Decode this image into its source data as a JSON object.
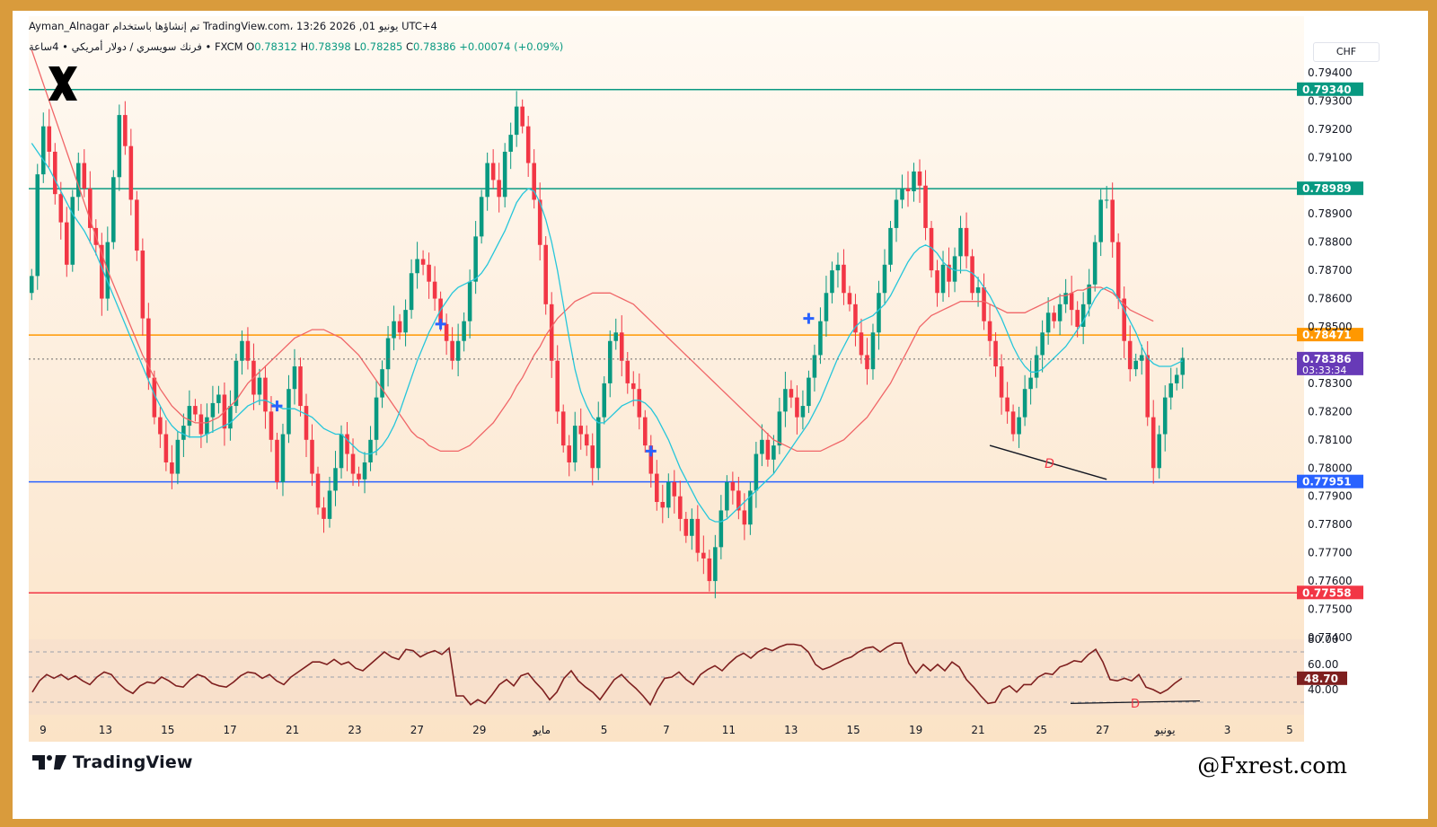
{
  "header": {
    "title_line": "Ayman_Alnagar تم إنشاؤها باستخدام TradingView.com، 13:26 2026 ,01 يونيو UTC+4",
    "symbol_line": "فرنك سويسري / دولار أمريكي • 4ساعة • FXCM",
    "o_label": "O",
    "o_value": "0.78312",
    "h_label": "H",
    "h_value": "0.78398",
    "l_label": "L",
    "l_value": "0.78285",
    "c_label": "C",
    "c_value": "0.78386",
    "change": "+0.00074 (+0.09%)"
  },
  "currency": "CHF",
  "brand": "TradingView",
  "watermark": "@Fxrest.com",
  "colors": {
    "bull": "#089981",
    "bear": "#f23645",
    "ma_fast": "#26c6da",
    "ma_slow": "#f06668",
    "resistance": "#089981",
    "pivot": "#ff9800",
    "support": "#2962ff",
    "low": "#f23645",
    "rsi": "#7e1f1f",
    "price_tag": "#673ab7",
    "frame": "#d99b3c"
  },
  "chart_data": {
    "type": "candlestick",
    "instrument": "USD/CHF",
    "timeframe": "4h",
    "y_ticks": [
      "0.79400",
      "0.79300",
      "0.79200",
      "0.79100",
      "0.78900",
      "0.78800",
      "0.78700",
      "0.78600",
      "0.78500",
      "0.78300",
      "0.78200",
      "0.78100",
      "0.78000",
      "0.77900",
      "0.77800",
      "0.77700",
      "0.77600",
      "0.77500",
      "0.77400"
    ],
    "ylim": [
      0.774,
      0.796
    ],
    "x_ticks": [
      "9",
      "13",
      "15",
      "17",
      "21",
      "23",
      "27",
      "29",
      "مايو",
      "5",
      "7",
      "11",
      "13",
      "15",
      "19",
      "21",
      "25",
      "27",
      "يونيو",
      "3",
      "5"
    ],
    "horizontal_levels": [
      {
        "label": "0.79340",
        "value": 0.7934,
        "color": "#089981"
      },
      {
        "label": "0.78989",
        "value": 0.78989,
        "color": "#089981"
      },
      {
        "label": "0.78471",
        "value": 0.78471,
        "color": "#ff9800"
      },
      {
        "label": "0.77951",
        "value": 0.77951,
        "color": "#2962ff"
      },
      {
        "label": "0.77558",
        "value": 0.77558,
        "color": "#f23645"
      }
    ],
    "current_price": {
      "label": "0.78386",
      "value": 0.78386,
      "countdown": "03:33:34"
    },
    "closes": [
      0.7868,
      0.7904,
      0.7921,
      0.7912,
      0.7897,
      0.7887,
      0.7872,
      0.7896,
      0.7908,
      0.7899,
      0.7885,
      0.7879,
      0.786,
      0.788,
      0.7903,
      0.7925,
      0.7914,
      0.7895,
      0.7877,
      0.7853,
      0.7832,
      0.7818,
      0.7812,
      0.7802,
      0.7798,
      0.781,
      0.7815,
      0.7822,
      0.7819,
      0.7812,
      0.7818,
      0.7823,
      0.7826,
      0.7814,
      0.7822,
      0.7838,
      0.7845,
      0.7838,
      0.7826,
      0.7832,
      0.782,
      0.781,
      0.7795,
      0.7812,
      0.7828,
      0.7836,
      0.7822,
      0.781,
      0.7798,
      0.7786,
      0.7782,
      0.7792,
      0.78,
      0.7812,
      0.7805,
      0.7798,
      0.7796,
      0.7802,
      0.781,
      0.7825,
      0.7835,
      0.7846,
      0.7852,
      0.7848,
      0.7856,
      0.7869,
      0.7874,
      0.7872,
      0.7866,
      0.786,
      0.7851,
      0.7845,
      0.7838,
      0.7845,
      0.7852,
      0.7866,
      0.7882,
      0.7896,
      0.7908,
      0.7902,
      0.7896,
      0.7912,
      0.7918,
      0.7928,
      0.7921,
      0.7908,
      0.7895,
      0.7879,
      0.7858,
      0.7838,
      0.782,
      0.7808,
      0.7802,
      0.7815,
      0.7812,
      0.7808,
      0.78,
      0.7818,
      0.783,
      0.7845,
      0.7848,
      0.7838,
      0.783,
      0.7828,
      0.7818,
      0.7808,
      0.7798,
      0.7788,
      0.7786,
      0.7795,
      0.779,
      0.7782,
      0.7776,
      0.7782,
      0.777,
      0.7768,
      0.776,
      0.7772,
      0.7785,
      0.7795,
      0.7792,
      0.7785,
      0.778,
      0.7792,
      0.7805,
      0.781,
      0.7803,
      0.7808,
      0.782,
      0.7828,
      0.7825,
      0.7818,
      0.7822,
      0.7832,
      0.784,
      0.7852,
      0.7862,
      0.787,
      0.7872,
      0.7862,
      0.7858,
      0.7848,
      0.784,
      0.7835,
      0.7848,
      0.7862,
      0.7872,
      0.7885,
      0.7895,
      0.7899,
      0.7898,
      0.7905,
      0.79,
      0.7885,
      0.787,
      0.7862,
      0.7872,
      0.7866,
      0.7875,
      0.7885,
      0.7875,
      0.7862,
      0.7864,
      0.7852,
      0.7845,
      0.7836,
      0.7825,
      0.782,
      0.7812,
      0.7818,
      0.7828,
      0.7832,
      0.784,
      0.7848,
      0.7855,
      0.7852,
      0.7858,
      0.7862,
      0.7856,
      0.785,
      0.7858,
      0.7865,
      0.788,
      0.7895,
      0.7895,
      0.788,
      0.786,
      0.7845,
      0.7835,
      0.7838,
      0.784,
      0.7818,
      0.78,
      0.7812,
      0.7825,
      0.783,
      0.7833,
      0.7839
    ],
    "sma_fast": [
      0.7915,
      0.7912,
      0.7909,
      0.7906,
      0.7902,
      0.7898,
      0.7894,
      0.789,
      0.7887,
      0.7884,
      0.788,
      0.7876,
      0.7871,
      0.7866,
      0.7861,
      0.7856,
      0.7851,
      0.7846,
      0.7841,
      0.7836,
      0.7831,
      0.7826,
      0.7822,
      0.7818,
      0.7815,
      0.7813,
      0.7812,
      0.7811,
      0.7811,
      0.7811,
      0.7812,
      0.7813,
      0.7814,
      0.7815,
      0.7816,
      0.7818,
      0.782,
      0.7822,
      0.7823,
      0.7824,
      0.7824,
      0.7823,
      0.7822,
      0.7821,
      0.7821,
      0.7821,
      0.782,
      0.7819,
      0.7818,
      0.7816,
      0.7814,
      0.7813,
      0.7812,
      0.7812,
      0.781,
      0.7808,
      0.7806,
      0.7805,
      0.7805,
      0.7806,
      0.7808,
      0.7811,
      0.7815,
      0.782,
      0.7826,
      0.7832,
      0.7838,
      0.7843,
      0.7848,
      0.7852,
      0.7856,
      0.7859,
      0.7862,
      0.7864,
      0.7865,
      0.7866,
      0.7867,
      0.7869,
      0.7872,
      0.7876,
      0.788,
      0.7884,
      0.7889,
      0.7894,
      0.7897,
      0.7899,
      0.7898,
      0.7894,
      0.7888,
      0.788,
      0.787,
      0.7858,
      0.7846,
      0.7835,
      0.7827,
      0.7822,
      0.7818,
      0.7816,
      0.7816,
      0.7818,
      0.782,
      0.7822,
      0.7823,
      0.7824,
      0.7824,
      0.7823,
      0.7821,
      0.7818,
      0.7814,
      0.781,
      0.7805,
      0.78,
      0.7796,
      0.7792,
      0.7788,
      0.7785,
      0.7782,
      0.7781,
      0.7781,
      0.7782,
      0.7784,
      0.7786,
      0.7788,
      0.779,
      0.7792,
      0.7794,
      0.7796,
      0.7798,
      0.7801,
      0.7804,
      0.7807,
      0.781,
      0.7813,
      0.7816,
      0.782,
      0.7824,
      0.7829,
      0.7834,
      0.7839,
      0.7843,
      0.7847,
      0.785,
      0.7852,
      0.7853,
      0.7854,
      0.7856,
      0.7858,
      0.7861,
      0.7865,
      0.7869,
      0.7873,
      0.7876,
      0.7878,
      0.7879,
      0.7878,
      0.7876,
      0.7873,
      0.7871,
      0.787,
      0.787,
      0.787,
      0.7869,
      0.7867,
      0.7864,
      0.7861,
      0.7857,
      0.7853,
      0.7848,
      0.7843,
      0.7839,
      0.7836,
      0.7834,
      0.7834,
      0.7835,
      0.7837,
      0.7839,
      0.7841,
      0.7843,
      0.7846,
      0.7849,
      0.7852,
      0.7856,
      0.786,
      0.7863,
      0.7864,
      0.7863,
      0.786,
      0.7856,
      0.7852,
      0.7848,
      0.7843,
      0.7839,
      0.7837,
      0.7836,
      0.7836,
      0.7836,
      0.7837,
      0.7838
    ],
    "sma_slow": [
      0.7948,
      0.7942,
      0.7936,
      0.793,
      0.7924,
      0.7918,
      0.7912,
      0.7906,
      0.79,
      0.7894,
      0.7888,
      0.7882,
      0.7876,
      0.787,
      0.7865,
      0.786,
      0.7855,
      0.785,
      0.7845,
      0.784,
      0.7836,
      0.7832,
      0.7828,
      0.7825,
      0.7822,
      0.782,
      0.7818,
      0.7817,
      0.7816,
      0.7816,
      0.7816,
      0.7817,
      0.7818,
      0.782,
      0.7822,
      0.7824,
      0.7827,
      0.783,
      0.7832,
      0.7834,
      0.7836,
      0.7838,
      0.784,
      0.7842,
      0.7844,
      0.7846,
      0.7847,
      0.7848,
      0.7849,
      0.7849,
      0.7849,
      0.7848,
      0.7847,
      0.7846,
      0.7844,
      0.7842,
      0.784,
      0.7837,
      0.7834,
      0.7831,
      0.7828,
      0.7825,
      0.7822,
      0.7819,
      0.7816,
      0.7813,
      0.7811,
      0.781,
      0.7808,
      0.7807,
      0.7806,
      0.7806,
      0.7806,
      0.7806,
      0.7807,
      0.7808,
      0.781,
      0.7812,
      0.7814,
      0.7816,
      0.7819,
      0.7822,
      0.7825,
      0.7829,
      0.7832,
      0.7836,
      0.784,
      0.7843,
      0.7847,
      0.785,
      0.7853,
      0.7855,
      0.7857,
      0.7859,
      0.786,
      0.7861,
      0.7862,
      0.7862,
      0.7862,
      0.7862,
      0.7861,
      0.786,
      0.7859,
      0.7858,
      0.7856,
      0.7854,
      0.7852,
      0.785,
      0.7848,
      0.7846,
      0.7844,
      0.7842,
      0.784,
      0.7838,
      0.7836,
      0.7834,
      0.7832,
      0.783,
      0.7828,
      0.7826,
      0.7824,
      0.7822,
      0.782,
      0.7818,
      0.7816,
      0.7814,
      0.7812,
      0.781,
      0.7809,
      0.7808,
      0.7807,
      0.7806,
      0.7806,
      0.7806,
      0.7806,
      0.7806,
      0.7807,
      0.7808,
      0.7809,
      0.781,
      0.7812,
      0.7814,
      0.7816,
      0.7818,
      0.7821,
      0.7824,
      0.7827,
      0.783,
      0.7834,
      0.7838,
      0.7842,
      0.7846,
      0.785,
      0.7852,
      0.7854,
      0.7855,
      0.7856,
      0.7857,
      0.7858,
      0.7859,
      0.7859,
      0.7859,
      0.7859,
      0.7859,
      0.7858,
      0.7857,
      0.7856,
      0.7855,
      0.7855,
      0.7855,
      0.7855,
      0.7856,
      0.7857,
      0.7858,
      0.7859,
      0.786,
      0.7861,
      0.7861,
      0.7862,
      0.7863,
      0.7863,
      0.7864,
      0.7864,
      0.7864,
      0.7863,
      0.7862,
      0.786,
      0.7858,
      0.7856,
      0.7855,
      0.7854,
      0.7853,
      0.7852
    ],
    "cross_markers": [
      {
        "index": 42,
        "value": 0.7822
      },
      {
        "index": 70,
        "value": 0.7851
      },
      {
        "index": 106,
        "value": 0.7806
      },
      {
        "index": 133,
        "value": 0.7853
      }
    ],
    "divergence_label": "D",
    "rsi": {
      "y_ticks": [
        "80.00",
        "60.00",
        "40.00"
      ],
      "levels": [
        70,
        50,
        30
      ],
      "ylim": [
        20,
        80
      ],
      "current": {
        "label": "48.70",
        "value": 48.7
      },
      "values": [
        38,
        47,
        52,
        49,
        52,
        48,
        51,
        47,
        44,
        50,
        54,
        52,
        45,
        40,
        37,
        43,
        46,
        45,
        50,
        47,
        43,
        42,
        48,
        52,
        50,
        45,
        43,
        42,
        46,
        51,
        54,
        53,
        49,
        52,
        47,
        44,
        50,
        54,
        58,
        62,
        62,
        60,
        64,
        60,
        62,
        57,
        55,
        60,
        65,
        70,
        66,
        64,
        72,
        71,
        66,
        69,
        71,
        68,
        73,
        35,
        35,
        28,
        32,
        29,
        36,
        44,
        48,
        43,
        51,
        53,
        46,
        40,
        32,
        38,
        49,
        55,
        47,
        42,
        38,
        32,
        40,
        48,
        52,
        46,
        41,
        35,
        28,
        40,
        49,
        50,
        54,
        48,
        44,
        52,
        56,
        59,
        55,
        61,
        66,
        69,
        65,
        70,
        73,
        71,
        74,
        76,
        76,
        75,
        70,
        60,
        56,
        58,
        61,
        64,
        66,
        70,
        73,
        74,
        70,
        74,
        77,
        77,
        61,
        53,
        60,
        55,
        60,
        55,
        62,
        58,
        48,
        42,
        35,
        29,
        30,
        40,
        43,
        38,
        44,
        44,
        50,
        53,
        52,
        58,
        60,
        63,
        62,
        68,
        72,
        62,
        48,
        47,
        49,
        47,
        52,
        42,
        40,
        37,
        40,
        45,
        49
      ]
    }
  }
}
